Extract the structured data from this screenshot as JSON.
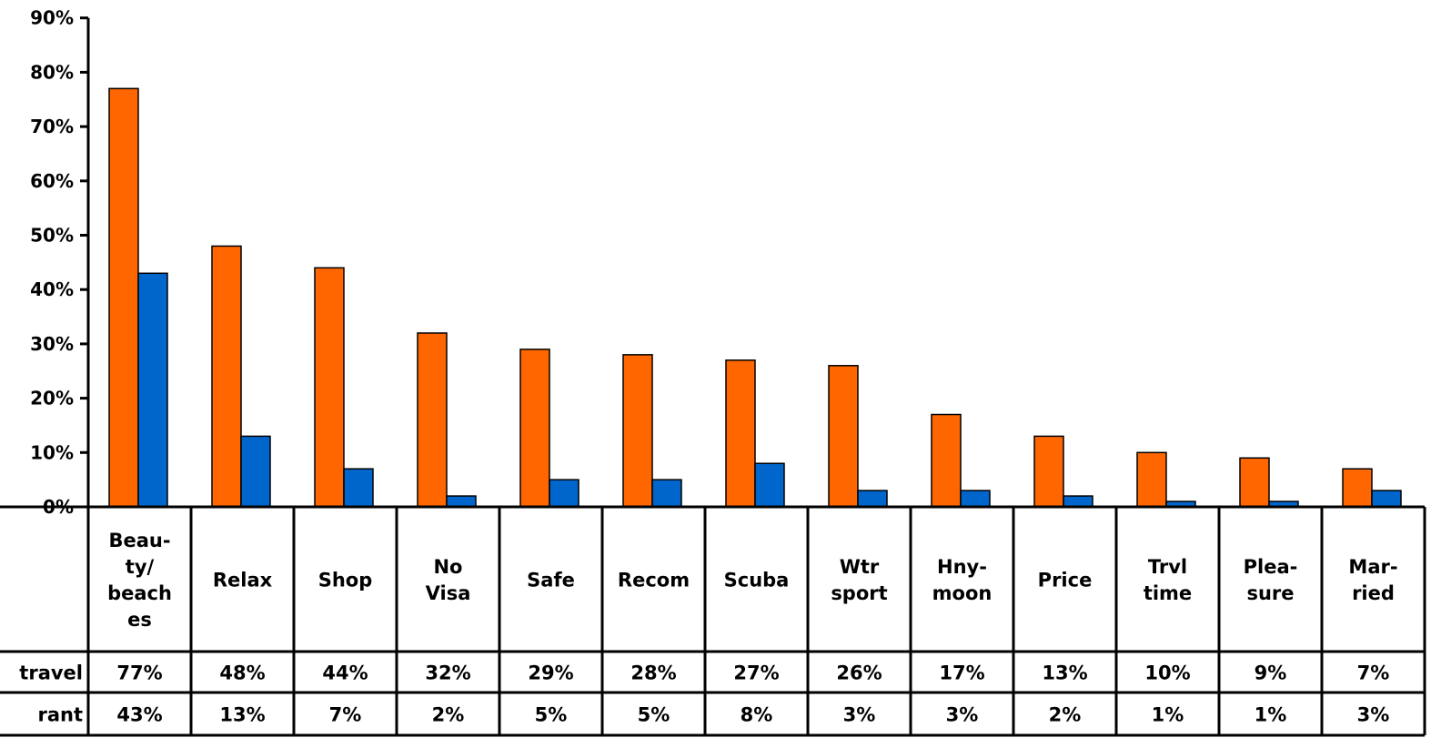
{
  "chart_data": {
    "type": "bar",
    "categories": [
      [
        "Beau-",
        "ty/",
        "beach",
        "es"
      ],
      [
        "Relax"
      ],
      [
        "Shop"
      ],
      [
        "No",
        "Visa"
      ],
      [
        "Safe"
      ],
      [
        "Recom"
      ],
      [
        "Scuba"
      ],
      [
        "Wtr",
        "sport"
      ],
      [
        "Hny-",
        "moon"
      ],
      [
        "Price"
      ],
      [
        "Trvl",
        "time"
      ],
      [
        "Plea-",
        "sure"
      ],
      [
        "Mar-",
        "ried"
      ]
    ],
    "series": [
      {
        "name": "travel",
        "color": "#FF6600",
        "values": [
          77,
          48,
          44,
          32,
          29,
          28,
          27,
          26,
          17,
          13,
          10,
          9,
          7
        ],
        "labels": [
          "77%",
          "48%",
          "44%",
          "32%",
          "29%",
          "28%",
          "27%",
          "26%",
          "17%",
          "13%",
          "10%",
          "9%",
          "7%"
        ]
      },
      {
        "name": "rant",
        "color": "#0066CC",
        "values": [
          43,
          13,
          7,
          2,
          5,
          5,
          8,
          3,
          3,
          2,
          1,
          1,
          3
        ],
        "labels": [
          "43%",
          "13%",
          "7%",
          "2%",
          "5%",
          "5%",
          "8%",
          "3%",
          "3%",
          "2%",
          "1%",
          "1%",
          "3%"
        ]
      }
    ],
    "yticks": [
      "0%",
      "10%",
      "20%",
      "30%",
      "40%",
      "50%",
      "60%",
      "70%",
      "80%",
      "90%"
    ],
    "ylim": [
      0,
      90
    ],
    "grid": false,
    "legend": "data-table"
  }
}
